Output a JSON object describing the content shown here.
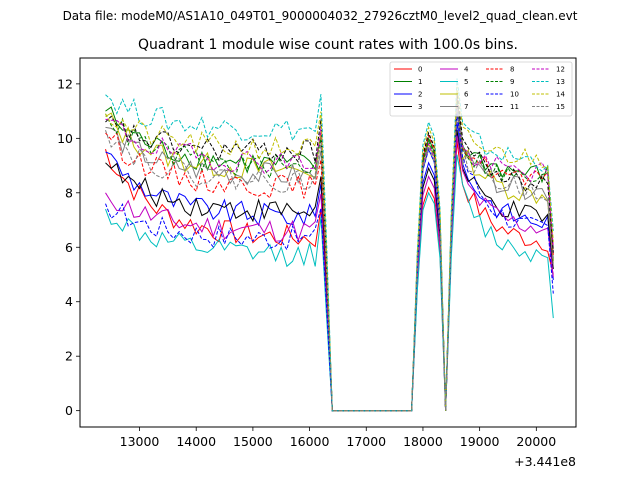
{
  "figure": {
    "suptitle": "Data file: modeM0/AS1A10_049T01_9000004032_27926cztM0_level2_quad_clean.evt",
    "offset_label": "+3.441e8"
  },
  "chart_data": {
    "type": "line",
    "title": "Quadrant 1 module wise count rates with 100.0s bins.",
    "xlabel": "",
    "ylabel": "",
    "x_offset": 344100000,
    "xlim": [
      11950,
      20700
    ],
    "ylim": [
      -0.6,
      12.95
    ],
    "xticks": [
      13000,
      14000,
      15000,
      16000,
      17000,
      18000,
      19000,
      20000
    ],
    "xtick_labels": [
      "13000",
      "14000",
      "15000",
      "16000",
      "17000",
      "18000",
      "19000",
      "20000"
    ],
    "yticks": [
      0,
      2,
      4,
      6,
      8,
      10,
      12
    ],
    "ytick_labels": [
      "0",
      "2",
      "4",
      "6",
      "8",
      "10",
      "12"
    ],
    "gaps": [
      [
        16200,
        16400
      ],
      [
        16400,
        17800
      ],
      [
        17800,
        17950
      ],
      [
        18300,
        18450
      ],
      [
        18450,
        18600
      ]
    ],
    "segments": [
      [
        12400,
        16200
      ],
      [
        17950,
        18300
      ],
      [
        18600,
        20300
      ]
    ],
    "legend": {
      "location": "upper-right",
      "ncol": 4
    },
    "series": [
      {
        "name": "0",
        "color": "#ff0000",
        "dash": "solid",
        "start": 9.6,
        "plateau": 6.3,
        "peak1": 8.2,
        "peak2": 9.9,
        "end": 6.1,
        "last": 5.0
      },
      {
        "name": "1",
        "color": "#008000",
        "dash": "solid",
        "start": 11.0,
        "plateau": 9.0,
        "peak1": 10.0,
        "peak2": 11.5,
        "end": 8.6,
        "last": 5.5
      },
      {
        "name": "2",
        "color": "#0000ff",
        "dash": "solid",
        "start": 9.5,
        "plateau": 7.1,
        "peak1": 9.1,
        "peak2": 10.6,
        "end": 6.8,
        "last": 4.8
      },
      {
        "name": "3",
        "color": "#000000",
        "dash": "solid",
        "start": 9.1,
        "plateau": 7.3,
        "peak1": 8.9,
        "peak2": 10.3,
        "end": 7.0,
        "last": 5.2
      },
      {
        "name": "4",
        "color": "#c000c0",
        "dash": "solid",
        "start": 8.0,
        "plateau": 6.6,
        "peak1": 8.6,
        "peak2": 10.1,
        "end": 6.6,
        "last": 4.9
      },
      {
        "name": "5",
        "color": "#00bfbf",
        "dash": "solid",
        "start": 7.4,
        "plateau": 5.7,
        "peak1": 8.0,
        "peak2": 9.4,
        "end": 5.6,
        "last": 3.4
      },
      {
        "name": "6",
        "color": "#bfbf00",
        "dash": "solid",
        "start": 10.8,
        "plateau": 8.8,
        "peak1": 9.8,
        "peak2": 11.3,
        "end": 7.8,
        "last": 5.4
      },
      {
        "name": "7",
        "color": "#808080",
        "dash": "solid",
        "start": 10.4,
        "plateau": 8.6,
        "peak1": 9.6,
        "peak2": 11.0,
        "end": 8.0,
        "last": 5.6
      },
      {
        "name": "8",
        "color": "#ff0000",
        "dash": "dashed",
        "start": 10.2,
        "plateau": 8.2,
        "peak1": 10.1,
        "peak2": 11.6,
        "end": 8.3,
        "last": 5.7
      },
      {
        "name": "9",
        "color": "#008000",
        "dash": "dashed",
        "start": 10.9,
        "plateau": 8.9,
        "peak1": 9.9,
        "peak2": 11.4,
        "end": 8.4,
        "last": 5.9
      },
      {
        "name": "10",
        "color": "#0000ff",
        "dash": "dashed",
        "start": 7.6,
        "plateau": 6.3,
        "peak1": 9.6,
        "peak2": 11.0,
        "end": 6.5,
        "last": 4.3
      },
      {
        "name": "11",
        "color": "#000000",
        "dash": "dashed",
        "start": 10.6,
        "plateau": 9.5,
        "peak1": 10.2,
        "peak2": 11.7,
        "end": 8.2,
        "last": 5.8
      },
      {
        "name": "12",
        "color": "#c000c0",
        "dash": "dashed",
        "start": 10.7,
        "plateau": 9.1,
        "peak1": 9.8,
        "peak2": 11.2,
        "end": 8.7,
        "last": 6.0
      },
      {
        "name": "13",
        "color": "#00bfbf",
        "dash": "dashed",
        "start": 11.6,
        "plateau": 10.3,
        "peak1": 10.6,
        "peak2": 12.2,
        "end": 9.1,
        "last": 6.6
      },
      {
        "name": "14",
        "color": "#bfbf00",
        "dash": "dashed",
        "start": 10.9,
        "plateau": 9.6,
        "peak1": 10.4,
        "peak2": 11.9,
        "end": 9.2,
        "last": 6.2
      },
      {
        "name": "15",
        "color": "#808080",
        "dash": "dashed",
        "start": 10.3,
        "plateau": 8.4,
        "peak1": 9.7,
        "peak2": 11.1,
        "end": 8.0,
        "last": 5.3
      }
    ]
  }
}
